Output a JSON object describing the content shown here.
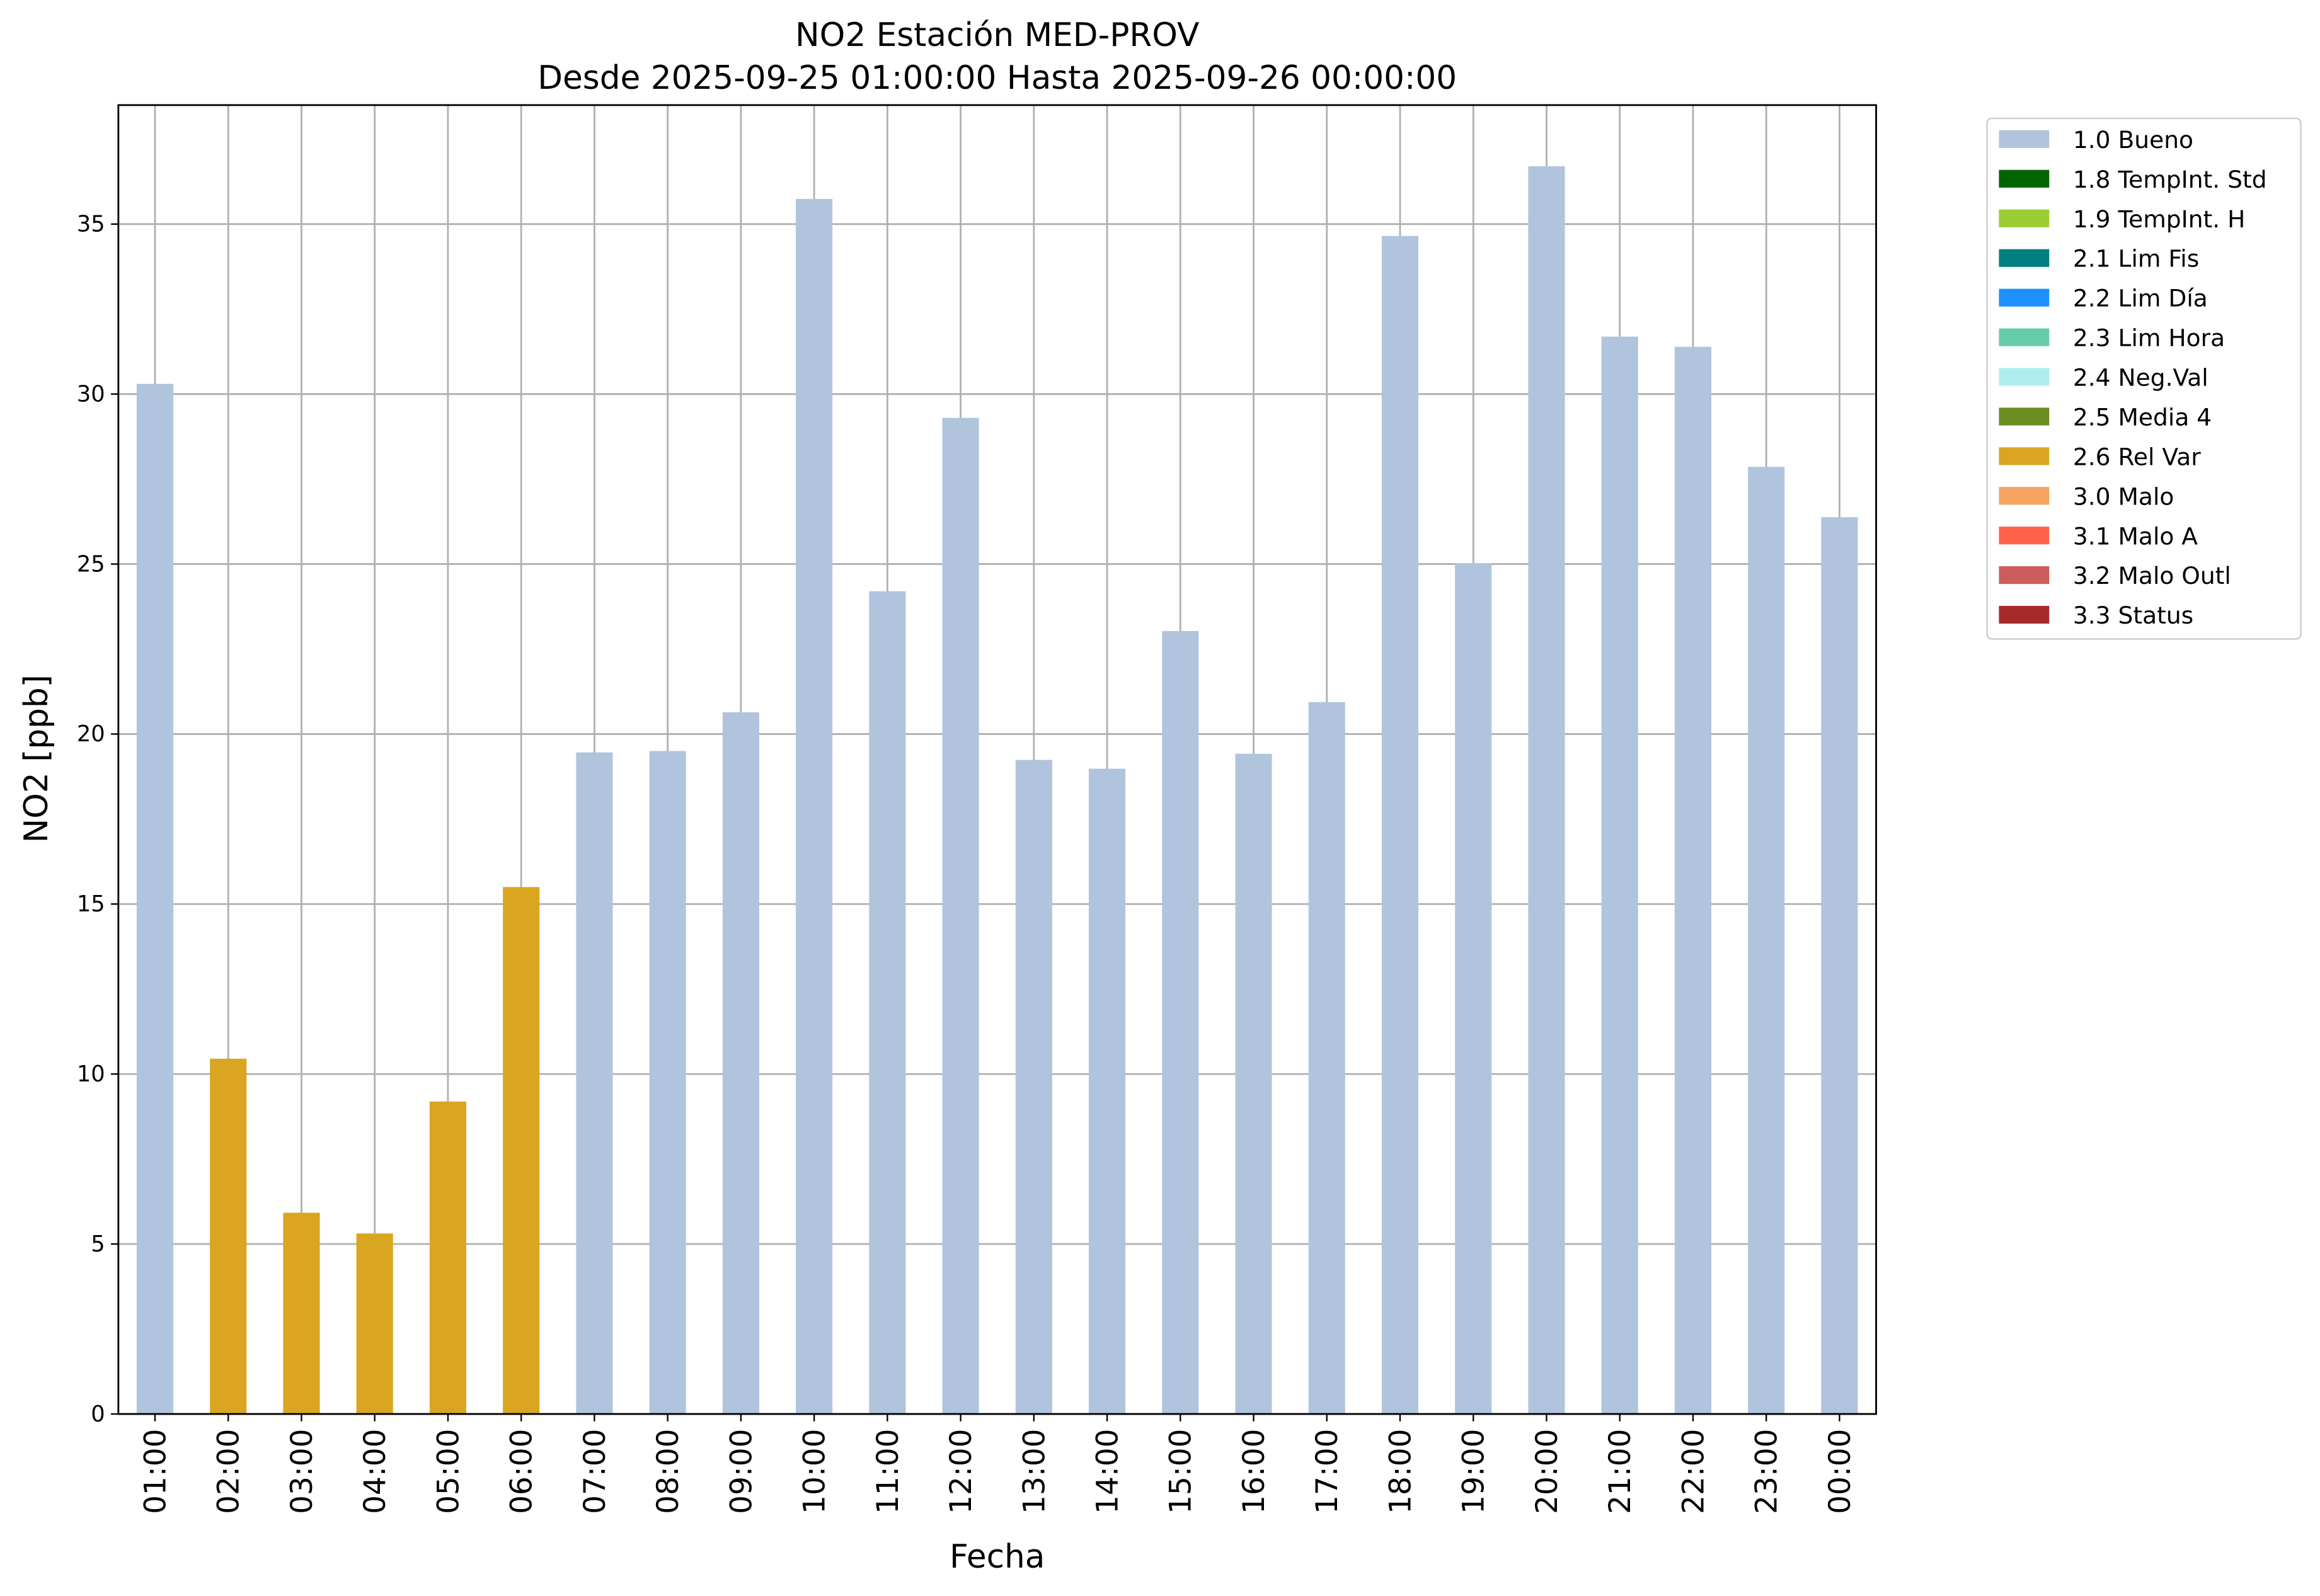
{
  "chart_data": {
    "type": "bar",
    "stacked": true,
    "title": "NO2 Estación MED-PROV",
    "subtitle": "Desde 2025-09-25 01:00:00 Hasta 2025-09-26 00:00:00",
    "x_label": "Fecha",
    "y_label": "NO2 [ppb]",
    "categories": [
      "01:00",
      "02:00",
      "03:00",
      "04:00",
      "05:00",
      "06:00",
      "07:00",
      "08:00",
      "09:00",
      "10:00",
      "11:00",
      "12:00",
      "13:00",
      "14:00",
      "15:00",
      "16:00",
      "17:00",
      "18:00",
      "19:00",
      "20:00",
      "21:00",
      "22:00",
      "23:00",
      "00:00"
    ],
    "series": [
      {
        "name": "1.0 Bueno",
        "color": "#b0c4de",
        "values": [
          30.3,
          null,
          null,
          null,
          null,
          null,
          19.46,
          19.5,
          20.64,
          35.74,
          24.2,
          29.3,
          19.24,
          18.98,
          23.03,
          19.42,
          20.94,
          34.65,
          25.03,
          36.7,
          31.69,
          31.39,
          27.86,
          26.38
        ]
      },
      {
        "name": "1.8 TempInt. Std",
        "color": "#006400",
        "values": [
          null,
          null,
          null,
          null,
          null,
          null,
          null,
          null,
          null,
          null,
          null,
          null,
          null,
          null,
          null,
          null,
          null,
          null,
          null,
          null,
          null,
          null,
          null,
          null
        ]
      },
      {
        "name": "1.9 TempInt. H",
        "color": "#9acd32",
        "values": [
          null,
          null,
          null,
          null,
          null,
          null,
          null,
          null,
          null,
          null,
          null,
          null,
          null,
          null,
          null,
          null,
          null,
          null,
          null,
          null,
          null,
          null,
          null,
          null
        ]
      },
      {
        "name": "2.1 Lim Fis",
        "color": "#008080",
        "values": [
          null,
          null,
          null,
          null,
          null,
          null,
          null,
          null,
          null,
          null,
          null,
          null,
          null,
          null,
          null,
          null,
          null,
          null,
          null,
          null,
          null,
          null,
          null,
          null
        ]
      },
      {
        "name": "2.2 Lim Día",
        "color": "#1e90ff",
        "values": [
          null,
          null,
          null,
          null,
          null,
          null,
          null,
          null,
          null,
          null,
          null,
          null,
          null,
          null,
          null,
          null,
          null,
          null,
          null,
          null,
          null,
          null,
          null,
          null
        ]
      },
      {
        "name": "2.3 Lim Hora",
        "color": "#66cdaa",
        "values": [
          null,
          null,
          null,
          null,
          null,
          null,
          null,
          null,
          null,
          null,
          null,
          null,
          null,
          null,
          null,
          null,
          null,
          null,
          null,
          null,
          null,
          null,
          null,
          null
        ]
      },
      {
        "name": "2.4 Neg.Val",
        "color": "#afeeee",
        "values": [
          null,
          null,
          null,
          null,
          null,
          null,
          null,
          null,
          null,
          null,
          null,
          null,
          null,
          null,
          null,
          null,
          null,
          null,
          null,
          null,
          null,
          null,
          null,
          null
        ]
      },
      {
        "name": "2.5 Media 4",
        "color": "#6b8e23",
        "values": [
          null,
          null,
          null,
          null,
          null,
          null,
          null,
          null,
          null,
          null,
          null,
          null,
          null,
          null,
          null,
          null,
          null,
          null,
          null,
          null,
          null,
          null,
          null,
          null
        ]
      },
      {
        "name": "2.6 Rel Var",
        "color": "#daa520",
        "values": [
          null,
          10.45,
          5.92,
          5.31,
          9.19,
          15.5,
          null,
          null,
          null,
          null,
          null,
          null,
          null,
          null,
          null,
          null,
          null,
          null,
          null,
          null,
          null,
          null,
          null,
          null
        ]
      },
      {
        "name": "3.0 Malo",
        "color": "#f4a460",
        "values": [
          null,
          null,
          null,
          null,
          null,
          null,
          null,
          null,
          null,
          null,
          null,
          null,
          null,
          null,
          null,
          null,
          null,
          null,
          null,
          null,
          null,
          null,
          null,
          null
        ]
      },
      {
        "name": "3.1 Malo A",
        "color": "#ff6347",
        "values": [
          null,
          null,
          null,
          null,
          null,
          null,
          null,
          null,
          null,
          null,
          null,
          null,
          null,
          null,
          null,
          null,
          null,
          null,
          null,
          null,
          null,
          null,
          null,
          null
        ]
      },
      {
        "name": "3.2 Malo Outl",
        "color": "#cd5c5c",
        "values": [
          null,
          null,
          null,
          null,
          null,
          null,
          null,
          null,
          null,
          null,
          null,
          null,
          null,
          null,
          null,
          null,
          null,
          null,
          null,
          null,
          null,
          null,
          null,
          null
        ]
      },
      {
        "name": "3.3 Status",
        "color": "#a52a2a",
        "values": [
          null,
          null,
          null,
          null,
          null,
          null,
          null,
          null,
          null,
          null,
          null,
          null,
          null,
          null,
          null,
          null,
          null,
          null,
          null,
          null,
          null,
          null,
          null,
          null
        ]
      }
    ],
    "ylim": [
      0,
      38.5
    ],
    "yticks": [
      0,
      5,
      10,
      15,
      20,
      25,
      30,
      35
    ],
    "grid": true,
    "legend": "outside right"
  }
}
